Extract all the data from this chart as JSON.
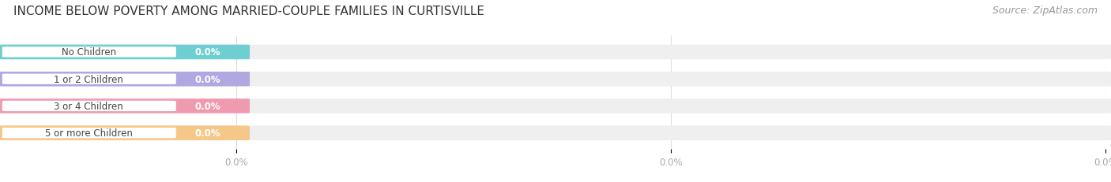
{
  "title": "INCOME BELOW POVERTY AMONG MARRIED-COUPLE FAMILIES IN CURTISVILLE",
  "source": "Source: ZipAtlas.com",
  "categories": [
    "No Children",
    "1 or 2 Children",
    "3 or 4 Children",
    "5 or more Children"
  ],
  "values": [
    0.0,
    0.0,
    0.0,
    0.0
  ],
  "bar_colors": [
    "#6dcfcf",
    "#b0a8e0",
    "#f09ab0",
    "#f5c88a"
  ],
  "bar_bg_color": "#efefef",
  "background_color": "#ffffff",
  "title_fontsize": 11,
  "label_fontsize": 8.5,
  "value_fontsize": 8.5,
  "source_fontsize": 9,
  "bar_height": 0.52,
  "label_text_color": "#444444",
  "value_color": "#ffffff",
  "tick_label_color": "#aaaaaa",
  "source_color": "#999999",
  "grid_color": "#dddddd",
  "white_pill_color": "#ffffff",
  "colored_bar_width": 0.21,
  "xlim_max": 1.0,
  "xtick_positions": [
    0.21,
    0.605,
    1.0
  ],
  "xtick_labels": [
    "0.0%",
    "0.0%",
    "0.0%"
  ]
}
